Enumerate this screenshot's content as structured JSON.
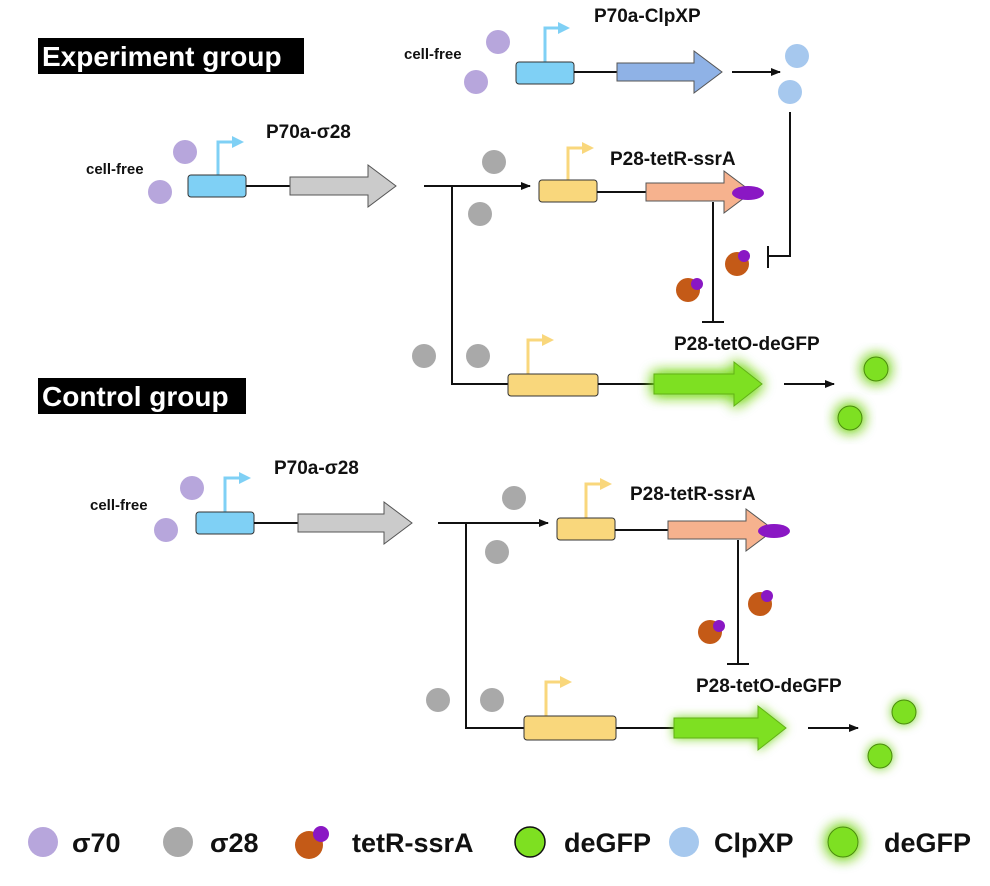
{
  "groups": {
    "experiment": "Experiment group",
    "control": "Control group"
  },
  "labels": {
    "cell_free": "cell-free",
    "p70a_clpxp": "P70a-ClpXP",
    "p70a_sigma28": "P70a-σ28",
    "p28_tetr_ssra": "P28-tetR-ssrA",
    "p28_teto_degfp": "P28-tetO-deGFP"
  },
  "legend": [
    {
      "label": "σ70",
      "icon": "sigma70-icon"
    },
    {
      "label": "σ28",
      "icon": "sigma28-icon"
    },
    {
      "label": "tetR-ssrA",
      "icon": "tetr-ssra-icon"
    },
    {
      "label": "deGFP",
      "icon": "degfp-icon"
    },
    {
      "label": "ClpXP",
      "icon": "clpxp-icon"
    },
    {
      "label": "deGFP",
      "icon": "degfp-glow-icon"
    }
  ],
  "colors": {
    "sigma70": "#b7a6dc",
    "sigma28": "#a9a9a9",
    "tetr": "#c45a17",
    "ssra": "#8a17c4",
    "degfp": "#7ee021",
    "clpxp": "#a6c8ee",
    "promoter_70": "#7fd0f5",
    "promoter_28": "#f9d77c",
    "clpxp_gene": "#8fb2e6",
    "sigma28_gene": "#cbcbcb",
    "tetr_gene": "#f6b28e",
    "degfp_gene": "#7ee021"
  }
}
